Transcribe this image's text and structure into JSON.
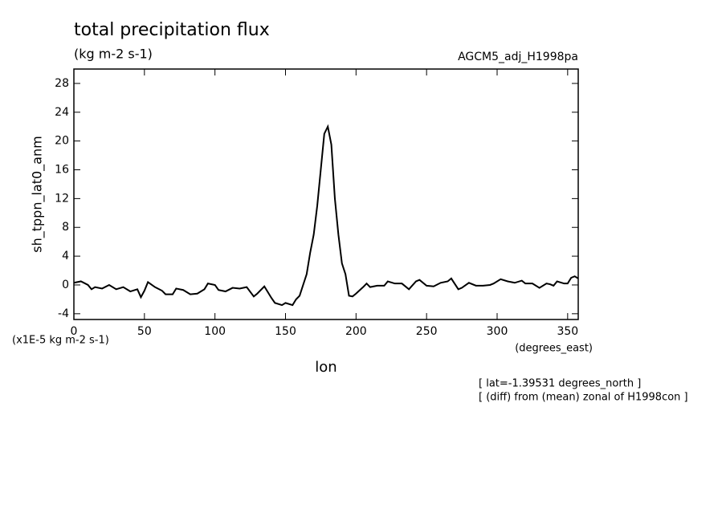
{
  "chart_data": {
    "type": "line",
    "title": "total precipitation flux",
    "subtitle": "(kg m-2 s-1)",
    "experiment": "AGCM5_adj_H1998pa",
    "y_label": "sh_tppn_lat0_anm",
    "y_units": "(x1E-5 kg m-2 s-1)",
    "x_units": "(degrees_east)",
    "x_label": "lon",
    "notes": [
      "[ lat=-1.39531 degrees_north ]",
      "[ (diff) from (mean) zonal of H1998con ]"
    ],
    "xlim": [
      0,
      357.5
    ],
    "ylim": [
      -4.8,
      30
    ],
    "xticks": [
      0,
      50,
      100,
      150,
      200,
      250,
      300,
      350
    ],
    "yticks": [
      -4,
      0,
      4,
      8,
      12,
      16,
      20,
      24,
      28
    ],
    "color": "#000000",
    "x": [
      0,
      5,
      10,
      12.5,
      15,
      20,
      25,
      30,
      35,
      40,
      45,
      47.5,
      50,
      52.5,
      57.5,
      62.5,
      65,
      70,
      72.5,
      77.5,
      82.5,
      87.5,
      92.5,
      95,
      100,
      102.5,
      107.5,
      112.5,
      117.5,
      122.5,
      127.5,
      130,
      135,
      140,
      142.5,
      147.5,
      150,
      155,
      157.5,
      160,
      162.5,
      165,
      167.5,
      170,
      172.5,
      175,
      177.5,
      180,
      182.5,
      185,
      187.5,
      190,
      192.5,
      195,
      197.5,
      200,
      205,
      207.5,
      210,
      215,
      220,
      222.5,
      227.5,
      232.5,
      237.5,
      242.5,
      245,
      250,
      255,
      260,
      265,
      267.5,
      272.5,
      275,
      280,
      285,
      290,
      295,
      297.5,
      302.5,
      307.5,
      312.5,
      317.5,
      320,
      325,
      330,
      335,
      337.5,
      340,
      342.5,
      347.5,
      350,
      352.5,
      355,
      357.5
    ],
    "values": [
      0.3,
      0.5,
      0,
      -0.6,
      -0.3,
      -0.5,
      0,
      -0.6,
      -0.3,
      -0.9,
      -0.6,
      -1.7,
      -0.8,
      0.4,
      -0.3,
      -0.8,
      -1.3,
      -1.3,
      -0.5,
      -0.7,
      -1.3,
      -1.2,
      -0.6,
      0.2,
      0,
      -0.7,
      -0.9,
      -0.4,
      -0.5,
      -0.3,
      -1.6,
      -1.2,
      -0.2,
      -1.8,
      -2.5,
      -2.8,
      -2.5,
      -2.8,
      -2,
      -1.5,
      0,
      1.5,
      4.5,
      7,
      11,
      16,
      21,
      22,
      19.5,
      12,
      7,
      3,
      1.5,
      -1.5,
      -1.6,
      -1.2,
      -0.3,
      0.2,
      -0.3,
      -0.1,
      -0.1,
      0.5,
      0.2,
      0.2,
      -0.6,
      0.5,
      0.7,
      -0.1,
      -0.2,
      0.3,
      0.5,
      0.9,
      -0.6,
      -0.4,
      0.3,
      -0.1,
      -0.1,
      0,
      0.2,
      0.8,
      0.5,
      0.3,
      0.6,
      0.2,
      0.2,
      -0.4,
      0.2,
      0.1,
      -0.1,
      0.5,
      0.2,
      0.2,
      1,
      1.2,
      0.9
    ]
  }
}
